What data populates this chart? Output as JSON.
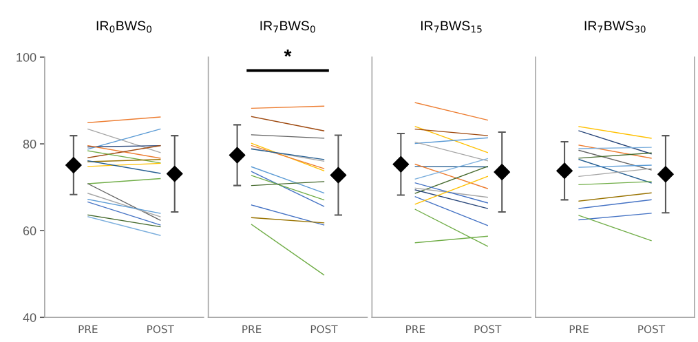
{
  "chart_data": [
    {
      "type": "line",
      "title": "IR$_{0}$BWS$_{0}$",
      "categories": [
        "PRE",
        "POST"
      ],
      "ylim": [
        40,
        100
      ],
      "yticks": [
        40,
        60,
        80,
        100
      ],
      "grid": false,
      "series": [
        {
          "color": "#ed7d31",
          "values": [
            84.9,
            86.2
          ]
        },
        {
          "color": "#a5a5a5",
          "values": [
            83.4,
            78.0
          ]
        },
        {
          "color": "#5b9bd5",
          "values": [
            78.8,
            83.4
          ]
        },
        {
          "color": "#264478",
          "values": [
            79.3,
            79.6
          ]
        },
        {
          "color": "#ed7d31",
          "values": [
            79.6,
            76.7
          ]
        },
        {
          "color": "#9e480e",
          "values": [
            76.8,
            79.6
          ]
        },
        {
          "color": "#70ad47",
          "values": [
            78.4,
            75.6
          ]
        },
        {
          "color": "#997300",
          "values": [
            75.9,
            76.4
          ]
        },
        {
          "color": "#ffc000",
          "values": [
            74.8,
            75.5
          ]
        },
        {
          "color": "#255e91",
          "values": [
            76.1,
            73.2
          ]
        },
        {
          "color": "#70ad47",
          "values": [
            70.8,
            72.0
          ]
        },
        {
          "color": "#636363",
          "values": [
            70.8,
            62.4
          ]
        },
        {
          "color": "#a5a5a5",
          "values": [
            68.6,
            63.2
          ]
        },
        {
          "color": "#5b9bd5",
          "values": [
            67.2,
            64.0
          ]
        },
        {
          "color": "#4472c4",
          "values": [
            66.6,
            61.3
          ]
        },
        {
          "color": "#43682b",
          "values": [
            63.6,
            60.9
          ]
        },
        {
          "color": "#7cafdd",
          "values": [
            63.2,
            58.9
          ]
        },
        {
          "type": "scatter",
          "marker": "diamond",
          "color": "#000000",
          "values": [
            75.1,
            73.1
          ],
          "errors": [
            6.8,
            8.8
          ]
        }
      ]
    },
    {
      "type": "line",
      "title": "IR$_{7}$BWS$_{0}$",
      "categories": [
        "PRE",
        "POST"
      ],
      "ylim": [
        40,
        100
      ],
      "yticks": [
        40,
        60,
        80,
        100
      ],
      "tick_labels": "x",
      "grid": false,
      "annotations": [
        "*"
      ],
      "series": [
        {
          "color": "#ed7d31",
          "values": [
            88.2,
            88.7
          ]
        },
        {
          "color": "#9e480e",
          "values": [
            86.3,
            83.0
          ]
        },
        {
          "color": "#636363",
          "values": [
            82.1,
            81.3
          ]
        },
        {
          "color": "#ffc000",
          "values": [
            80.1,
            73.8
          ]
        },
        {
          "color": "#ed7d31",
          "values": [
            79.6,
            74.3
          ]
        },
        {
          "color": "#a5a5a5",
          "values": [
            78.9,
            76.0
          ]
        },
        {
          "color": "#255e91",
          "values": [
            78.8,
            76.4
          ]
        },
        {
          "color": "#5b9bd5",
          "values": [
            74.7,
            68.7
          ]
        },
        {
          "color": "#4472c4",
          "values": [
            73.6,
            65.6
          ]
        },
        {
          "color": "#70ad47",
          "values": [
            72.7,
            67.1
          ]
        },
        {
          "color": "#43682b",
          "values": [
            70.4,
            71.3
          ]
        },
        {
          "color": "#4472c4",
          "values": [
            65.9,
            61.3
          ]
        },
        {
          "color": "#997300",
          "values": [
            63.0,
            61.8
          ]
        },
        {
          "color": "#70ad47",
          "values": [
            61.4,
            49.8
          ]
        },
        {
          "type": "scatter",
          "marker": "diamond",
          "color": "#000000",
          "values": [
            77.4,
            72.8
          ],
          "errors": [
            7.0,
            9.2
          ]
        }
      ]
    },
    {
      "type": "line",
      "title": "IR$_{7}$BWS$_{15}$",
      "categories": [
        "PRE",
        "POST"
      ],
      "ylim": [
        40,
        100
      ],
      "yticks": [
        40,
        60,
        80,
        100
      ],
      "tick_labels": "x",
      "grid": false,
      "series": [
        {
          "color": "#ed7d31",
          "values": [
            89.5,
            85.5
          ]
        },
        {
          "color": "#ffc000",
          "values": [
            84.0,
            78.0
          ]
        },
        {
          "color": "#9e480e",
          "values": [
            83.4,
            81.9
          ]
        },
        {
          "color": "#5b9bd5",
          "values": [
            80.1,
            81.4
          ]
        },
        {
          "color": "#a5a5a5",
          "values": [
            80.4,
            76.1
          ]
        },
        {
          "color": "#255e91",
          "values": [
            74.8,
            74.7
          ]
        },
        {
          "color": "#ed7d31",
          "values": [
            75.3,
            69.7
          ]
        },
        {
          "color": "#7cafdd",
          "values": [
            71.9,
            76.6
          ]
        },
        {
          "color": "#43682b",
          "values": [
            68.6,
            74.8
          ]
        },
        {
          "color": "#a5a5a5",
          "values": [
            69.8,
            67.7
          ]
        },
        {
          "color": "#4472c4",
          "values": [
            71.0,
            66.4
          ]
        },
        {
          "color": "#264478",
          "values": [
            69.4,
            65.1
          ]
        },
        {
          "color": "#4472c4",
          "values": [
            67.8,
            61.2
          ]
        },
        {
          "color": "#ffc000",
          "values": [
            66.1,
            72.5
          ]
        },
        {
          "color": "#70ad47",
          "values": [
            64.9,
            56.4
          ]
        },
        {
          "color": "#70ad47",
          "values": [
            57.2,
            58.7
          ]
        },
        {
          "type": "scatter",
          "marker": "diamond",
          "color": "#000000",
          "values": [
            75.3,
            73.5
          ],
          "errors": [
            7.1,
            9.2
          ]
        }
      ]
    },
    {
      "type": "line",
      "title": "IR$_{7}$BWS$_{30}$",
      "categories": [
        "PRE",
        "POST"
      ],
      "ylim": [
        40,
        100
      ],
      "yticks": [
        40,
        60,
        80,
        100
      ],
      "tick_labels": "x",
      "grid": false,
      "series": [
        {
          "color": "#ffc000",
          "values": [
            84.0,
            81.3
          ]
        },
        {
          "color": "#264478",
          "values": [
            83.0,
            77.7
          ]
        },
        {
          "color": "#ed7d31",
          "values": [
            79.7,
            76.7
          ]
        },
        {
          "color": "#7cafdd",
          "values": [
            78.9,
            79.2
          ]
        },
        {
          "color": "#636363",
          "values": [
            78.5,
            74.0
          ]
        },
        {
          "color": "#43682b",
          "values": [
            76.7,
            77.9
          ]
        },
        {
          "color": "#255e91",
          "values": [
            76.4,
            71.0
          ]
        },
        {
          "color": "#5b9bd5",
          "values": [
            74.6,
            75.1
          ]
        },
        {
          "color": "#a5a5a5",
          "values": [
            72.5,
            74.3
          ]
        },
        {
          "color": "#70ad47",
          "values": [
            70.6,
            71.3
          ]
        },
        {
          "color": "#997300",
          "values": [
            66.8,
            68.7
          ]
        },
        {
          "color": "#4472c4",
          "values": [
            65.1,
            67.1
          ]
        },
        {
          "color": "#4472c4",
          "values": [
            62.5,
            64.0
          ]
        },
        {
          "color": "#70ad47",
          "values": [
            63.5,
            57.7
          ]
        },
        {
          "type": "scatter",
          "marker": "diamond",
          "color": "#000000",
          "values": [
            73.8,
            73.0
          ],
          "errors": [
            6.7,
            8.9
          ]
        }
      ]
    }
  ]
}
